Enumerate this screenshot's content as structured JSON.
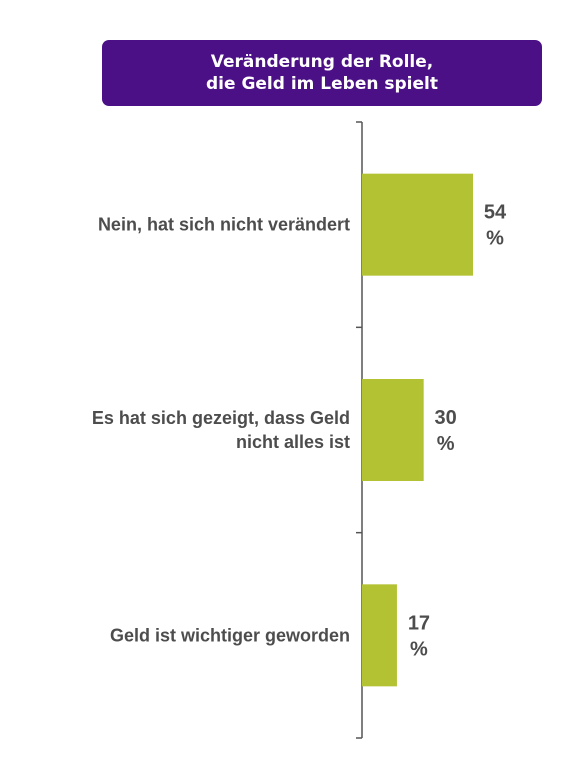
{
  "title": {
    "line1": "Veränderung der Rolle,",
    "line2": "die Geld im Leben spielt"
  },
  "colors": {
    "title_bg": "#4b0f86",
    "bar": "#b3c233",
    "axis": "#555555",
    "text": "#4d4d4d"
  },
  "chart_data": {
    "type": "bar",
    "orientation": "horizontal",
    "title": "Veränderung der Rolle, die Geld im Leben spielt",
    "categories": [
      [
        "Nein, hat sich nicht verändert"
      ],
      [
        "Es hat sich gezeigt, dass Geld",
        "nicht alles ist"
      ],
      [
        "Geld ist wichtiger geworden"
      ]
    ],
    "values": [
      54,
      30,
      17
    ],
    "value_labels": [
      [
        "54",
        "%"
      ],
      [
        "30",
        "%"
      ],
      [
        "17",
        "%"
      ]
    ],
    "unit": "%",
    "grid": false,
    "legend": "none"
  }
}
